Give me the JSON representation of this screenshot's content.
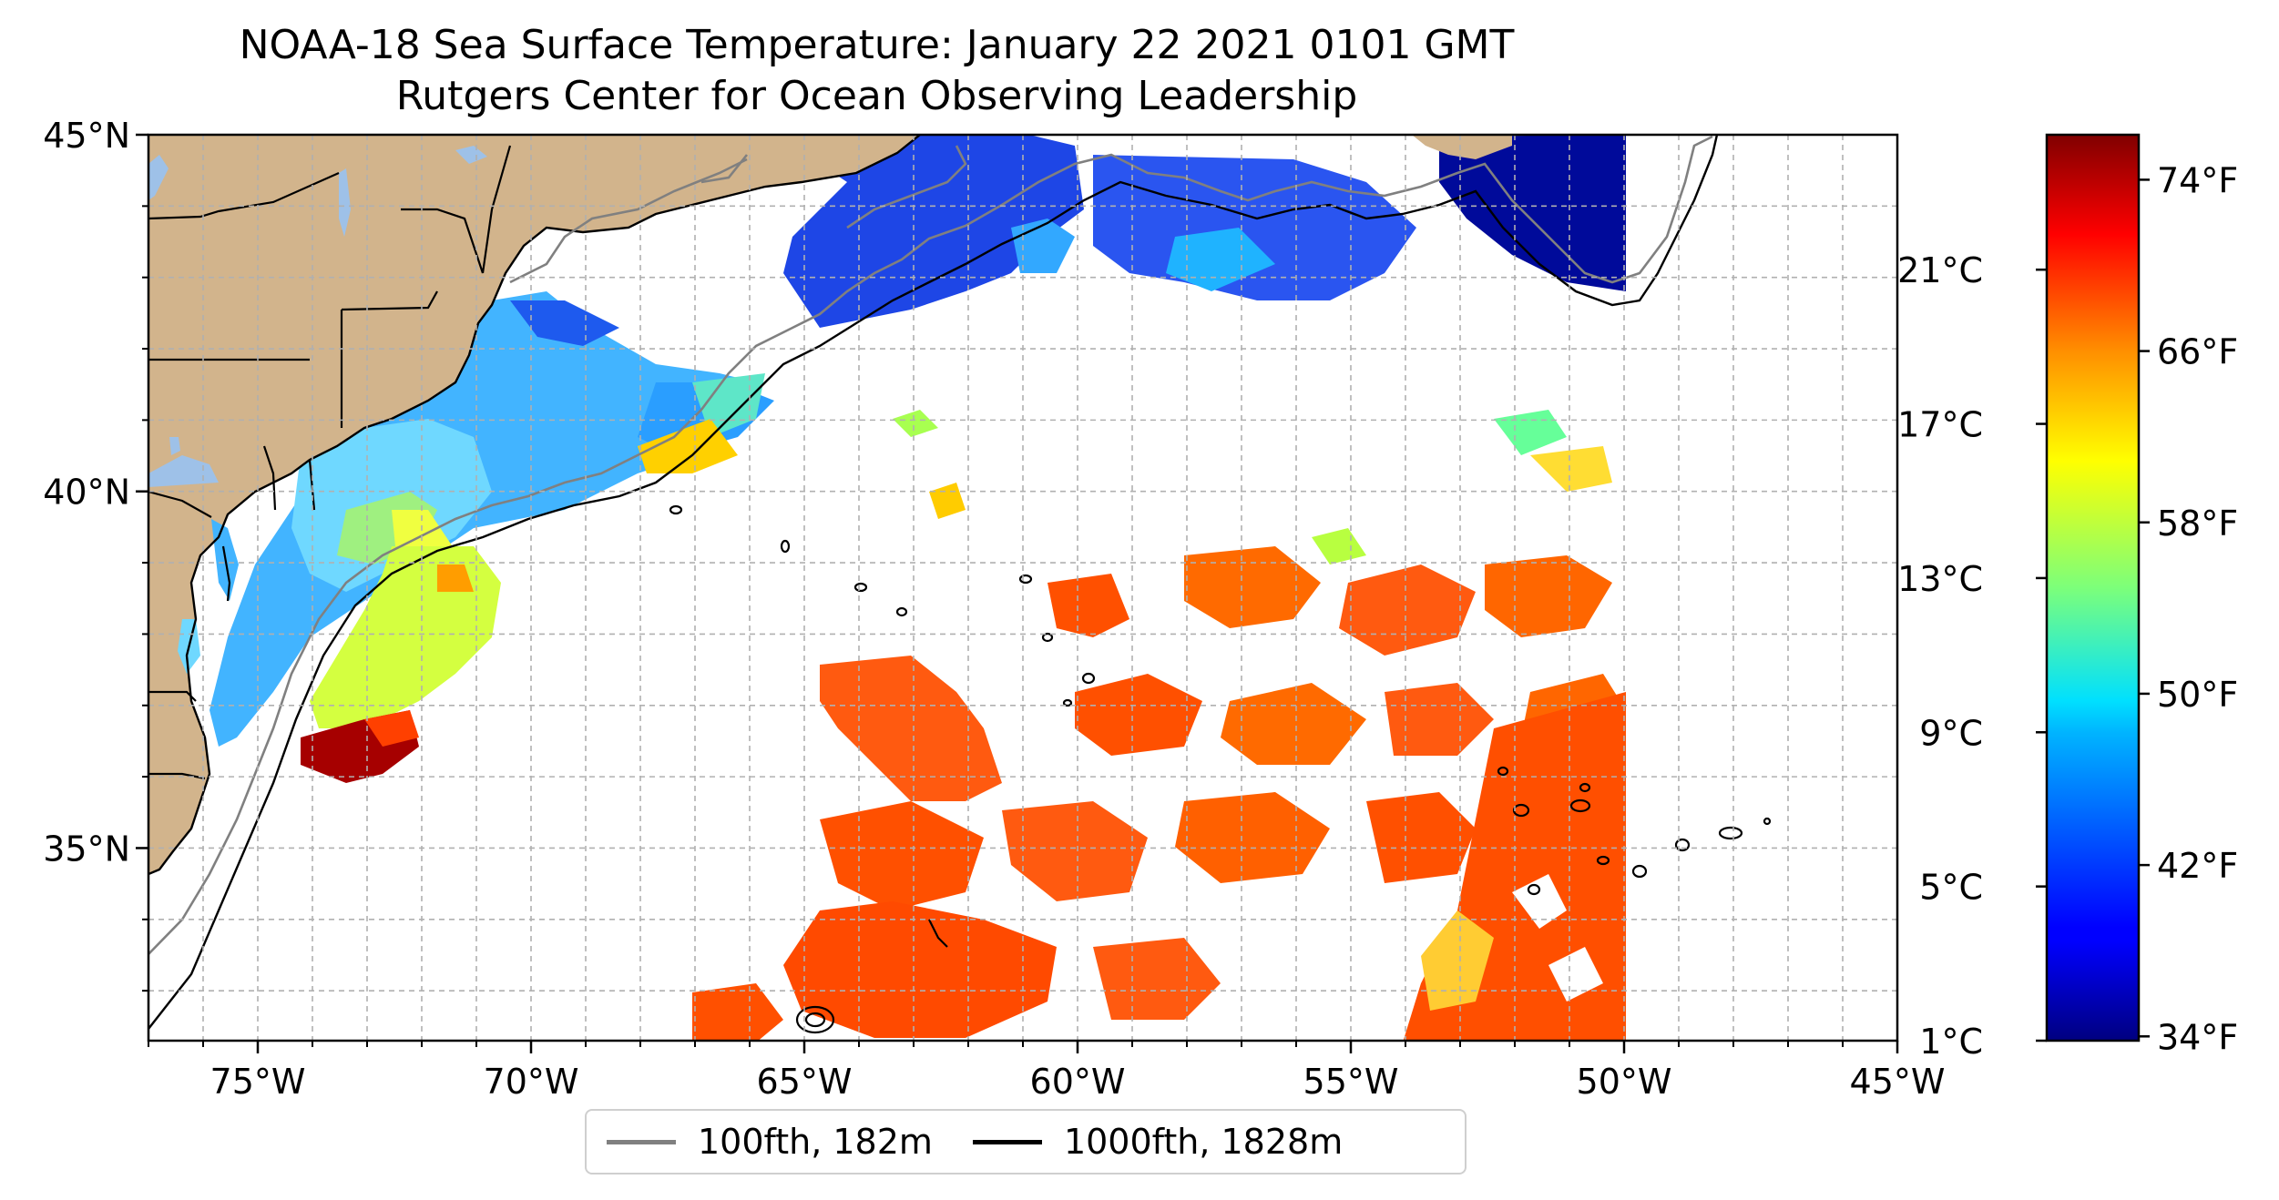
{
  "title": {
    "line1": "NOAA-18 Sea Surface Temperature: January 22 2021 0101 GMT",
    "line2": "Rutgers Center for Ocean Observing Leadership"
  },
  "map": {
    "lon_range": [
      -77,
      -45
    ],
    "lat_range": [
      32.3,
      45
    ],
    "lon_ticks": [
      {
        "value": -75,
        "label": "75°W"
      },
      {
        "value": -70,
        "label": "70°W"
      },
      {
        "value": -65,
        "label": "65°W"
      },
      {
        "value": -60,
        "label": "60°W"
      },
      {
        "value": -55,
        "label": "55°W"
      },
      {
        "value": -50,
        "label": "50°W"
      },
      {
        "value": -45,
        "label": "45°W"
      }
    ],
    "lat_ticks": [
      {
        "value": 45,
        "label": "45°N"
      },
      {
        "value": 40,
        "label": "40°N"
      },
      {
        "value": 35,
        "label": "35°N"
      }
    ],
    "grid": true,
    "land_color": "#d2b48c",
    "lake_color": "#9ec1e8"
  },
  "legend": {
    "placement": "bottom-center",
    "items": [
      {
        "label": "100fth, 182m",
        "color": "#808080"
      },
      {
        "label": "1000fth, 1828m",
        "color": "#000000"
      }
    ]
  },
  "colorbar": {
    "colormap": "jet",
    "range_c": [
      1,
      24.5
    ],
    "celsius_ticks": [
      {
        "value": 1,
        "label": "1°C"
      },
      {
        "value": 5,
        "label": "5°C"
      },
      {
        "value": 9,
        "label": "9°C"
      },
      {
        "value": 13,
        "label": "13°C"
      },
      {
        "value": 17,
        "label": "17°C"
      },
      {
        "value": 21,
        "label": "21°C"
      }
    ],
    "fahrenheit_ticks": [
      {
        "value": 34,
        "label": "34°F"
      },
      {
        "value": 42,
        "label": "42°F"
      },
      {
        "value": 50,
        "label": "50°F"
      },
      {
        "value": 58,
        "label": "58°F"
      },
      {
        "value": 66,
        "label": "66°F"
      },
      {
        "value": 74,
        "label": "74°F"
      }
    ]
  }
}
